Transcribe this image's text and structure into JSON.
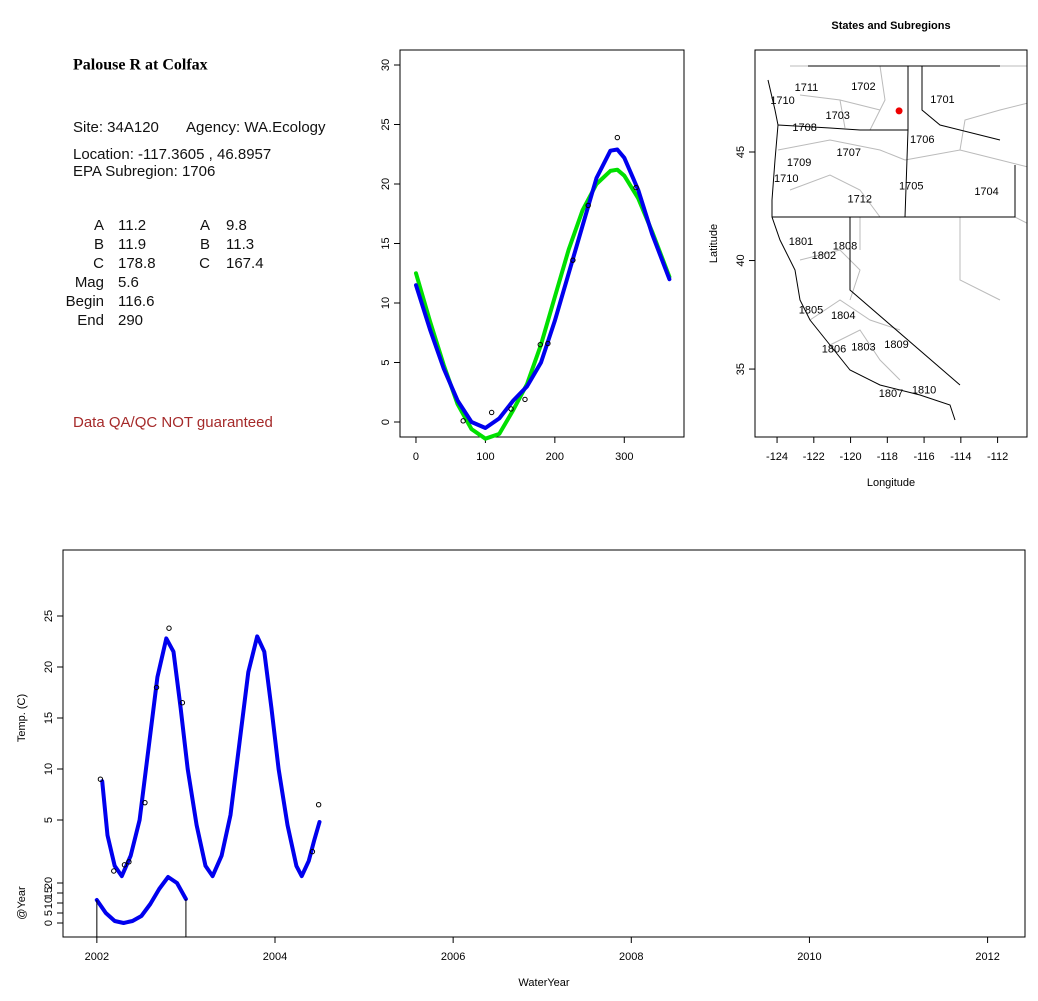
{
  "info": {
    "title": "Palouse R at Colfax",
    "site": "Site: 34A120",
    "agency": "Agency: WA.Ecology",
    "location": "Location: -117.3605 , 46.8957",
    "subregion": "EPA Subregion: 1706",
    "params": [
      [
        "A",
        "11.2",
        "A",
        "9.8"
      ],
      [
        "B",
        "11.9",
        "B",
        "11.3"
      ],
      [
        "C",
        "178.8",
        "C",
        "167.4"
      ],
      [
        "Mag",
        "5.6"
      ],
      [
        "Begin",
        "116.6"
      ],
      [
        "End",
        "290"
      ]
    ],
    "note": "Data QA/QC NOT guaranteed"
  },
  "chart_data": [
    {
      "type": "line",
      "xlim": [
        -23,
        386
      ],
      "ylim": [
        -1.26,
        31.26
      ],
      "xticks": [
        0,
        100,
        200,
        300
      ],
      "yticks": [
        0,
        5,
        10,
        15,
        20,
        25,
        30
      ],
      "series": [
        {
          "style": "line",
          "color": "#00e000",
          "x": [
            0,
            20,
            40,
            60,
            80,
            100,
            120,
            140,
            160,
            180,
            200,
            220,
            240,
            260,
            280,
            290,
            300,
            320,
            340,
            365
          ],
          "values": [
            12.5,
            8.5,
            4.8,
            1.5,
            -0.6,
            -1.4,
            -1,
            1,
            3.2,
            6.5,
            10.5,
            14.5,
            17.8,
            20,
            21.1,
            21.2,
            20.7,
            18.8,
            16,
            12.2
          ]
        },
        {
          "style": "line",
          "color": "#0000ee",
          "x": [
            0,
            20,
            40,
            60,
            80,
            100,
            120,
            140,
            160,
            180,
            200,
            220,
            240,
            260,
            280,
            290,
            300,
            320,
            340,
            365
          ],
          "values": [
            11.5,
            7.8,
            4.5,
            1.8,
            0,
            -0.5,
            0.3,
            1.8,
            3,
            5,
            8.5,
            12.5,
            16.5,
            20.5,
            22.8,
            22.9,
            22.2,
            19.5,
            15.8,
            12
          ]
        },
        {
          "style": "points",
          "color": "#000000",
          "x": [
            68,
            109,
            137,
            157,
            179,
            190,
            226,
            248,
            290,
            317
          ],
          "values": [
            0.1,
            0.8,
            1.1,
            1.9,
            6.5,
            6.6,
            13.6,
            18.2,
            23.9,
            19.7
          ]
        }
      ]
    },
    {
      "type": "map",
      "title": "States and Subregions",
      "xlabel": "Longitude",
      "ylabel": "Latitude",
      "xlim": [
        -125.2,
        -110.4
      ],
      "ylim": [
        31.87,
        49.7
      ],
      "xticks": [
        -124,
        -122,
        -120,
        -118,
        -116,
        -114,
        -112
      ],
      "yticks": [
        35,
        40,
        45
      ],
      "labels": [
        {
          "text": "1702",
          "x": -119.3,
          "y": 48.0
        },
        {
          "text": "1711",
          "x": -122.4,
          "y": 47.95
        },
        {
          "text": "1710",
          "x": -123.7,
          "y": 47.35
        },
        {
          "text": "1701",
          "x": -115.0,
          "y": 47.4
        },
        {
          "text": "1703",
          "x": -120.7,
          "y": 46.65
        },
        {
          "text": "1708",
          "x": -122.5,
          "y": 46.1
        },
        {
          "text": "1706",
          "x": -116.1,
          "y": 45.55
        },
        {
          "text": "1707",
          "x": -120.1,
          "y": 44.95
        },
        {
          "text": "1709",
          "x": -122.8,
          "y": 44.5
        },
        {
          "text": "1710",
          "x": -123.5,
          "y": 43.75
        },
        {
          "text": "1705",
          "x": -116.7,
          "y": 43.4
        },
        {
          "text": "1704",
          "x": -112.6,
          "y": 43.15
        },
        {
          "text": "1712",
          "x": -119.5,
          "y": 42.8
        },
        {
          "text": "1801",
          "x": -122.7,
          "y": 40.85
        },
        {
          "text": "1808",
          "x": -120.3,
          "y": 40.65
        },
        {
          "text": "1802",
          "x": -121.45,
          "y": 40.2
        },
        {
          "text": "1805",
          "x": -122.15,
          "y": 37.7
        },
        {
          "text": "1804",
          "x": -120.4,
          "y": 37.45
        },
        {
          "text": "1809",
          "x": -117.5,
          "y": 36.1
        },
        {
          "text": "1806",
          "x": -120.9,
          "y": 35.9
        },
        {
          "text": "1803",
          "x": -119.3,
          "y": 36.0
        },
        {
          "text": "1810",
          "x": -116.0,
          "y": 34.0
        },
        {
          "text": "1807",
          "x": -117.8,
          "y": 33.85
        }
      ],
      "site": {
        "x": -117.3605,
        "y": 46.8957,
        "color": "#ee0000"
      }
    },
    {
      "type": "line",
      "xlabel": "WaterYear",
      "ylabel": "Temp. (C)",
      "y2label": "@Year",
      "xlim": [
        2001.62,
        2012.42
      ],
      "ylim": [
        -6.47,
        31.47
      ],
      "y2lim": [
        -7,
        186.5
      ],
      "xticks": [
        2002,
        2004,
        2006,
        2008,
        2010,
        2012
      ],
      "yticks": [
        5,
        10,
        15,
        20,
        25
      ],
      "y2ticks": [
        0,
        5,
        10,
        15,
        20
      ],
      "series": [
        {
          "style": "line",
          "color": "#0000ee",
          "x": [
            2002.06,
            2002.12,
            2002.2,
            2002.28,
            2002.38,
            2002.48,
            2002.58,
            2002.68,
            2002.78,
            2002.86,
            2002.94,
            2003.02,
            2003.12,
            2003.22,
            2003.3,
            2003.4,
            2003.5,
            2003.6,
            2003.7,
            2003.8,
            2003.88,
            2003.96,
            2004.04,
            2004.14,
            2004.24,
            2004.3,
            2004.38,
            2004.44,
            2004.5
          ],
          "values": [
            8.8,
            3.5,
            0.5,
            -0.5,
            1.5,
            5,
            12,
            19,
            22.8,
            21.5,
            16,
            10,
            4.5,
            0.5,
            -0.5,
            1.5,
            5.5,
            12.5,
            19.5,
            23,
            21.5,
            16,
            10,
            4.5,
            0.5,
            -0.5,
            1,
            3,
            4.8
          ]
        },
        {
          "style": "points",
          "color": "#000000",
          "x": [
            2002.04,
            2002.19,
            2002.31,
            2002.36,
            2002.54,
            2002.67,
            2002.81,
            2002.96,
            2004.42,
            2004.49
          ],
          "values": [
            9.0,
            0,
            0.6,
            0.9,
            6.7,
            18,
            23.8,
            16.5,
            1.9,
            6.5
          ]
        },
        {
          "style": "line",
          "axis": "y2",
          "color": "#0000ee",
          "drop": true,
          "x": [
            2002.0,
            2002.1,
            2002.2,
            2002.3,
            2002.4,
            2002.5,
            2002.6,
            2002.7,
            2002.8,
            2002.9,
            2003.0
          ],
          "values": [
            11.5,
            5,
            1,
            0,
            1,
            3.5,
            9.5,
            17,
            23,
            20,
            12
          ]
        }
      ]
    }
  ]
}
